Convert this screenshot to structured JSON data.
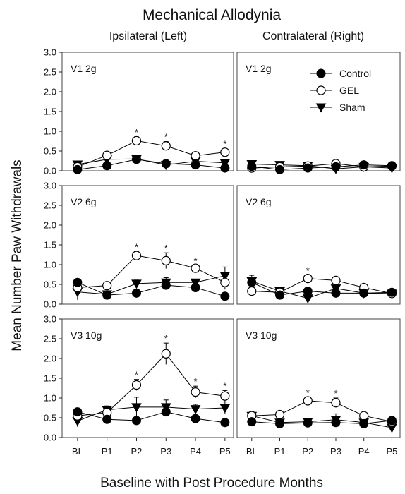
{
  "figure": {
    "title": "Mechanical Allodynia",
    "ylabel": "Mean Number Paw Withdrawals",
    "xlabel": "Baseline with Post Procedure Months",
    "col_titles": [
      "Ipsilateral (Left)",
      "Contralateral (Right)"
    ]
  },
  "legend": {
    "items": [
      {
        "label": "Control",
        "marker": "filled-circle"
      },
      {
        "label": "GEL",
        "marker": "open-circle"
      },
      {
        "label": "Sham",
        "marker": "filled-triangle-down"
      }
    ]
  },
  "chart_data": [
    {
      "type": "line",
      "title": "V1 2g",
      "side": "Ipsilateral (Left)",
      "categories": [
        "BL",
        "P1",
        "P2",
        "P3",
        "P4",
        "P5"
      ],
      "ylim": [
        0,
        3
      ],
      "yticks": [
        "0.0",
        "0.5",
        "1.0",
        "1.5",
        "2.0",
        "2.5",
        "3.0"
      ],
      "series": [
        {
          "name": "Control",
          "values": [
            0.03,
            0.13,
            0.29,
            0.18,
            0.15,
            0.07
          ],
          "errors": [
            0.05,
            0.05,
            0.05,
            0.05,
            0.05,
            0.05
          ]
        },
        {
          "name": "GEL",
          "values": [
            0.1,
            0.39,
            0.76,
            0.63,
            0.38,
            0.47
          ],
          "errors": [
            0.06,
            0.07,
            0.1,
            0.11,
            0.06,
            0.09
          ]
        },
        {
          "name": "Sham",
          "values": [
            0.16,
            0.29,
            0.3,
            0.15,
            0.24,
            0.2
          ],
          "errors": [
            0.05,
            0.06,
            0.05,
            0.05,
            0.05,
            0.05
          ]
        }
      ],
      "significance": [
        false,
        false,
        true,
        true,
        false,
        true
      ]
    },
    {
      "type": "line",
      "title": "V1 2g",
      "side": "Contralateral (Right)",
      "categories": [
        "BL",
        "P1",
        "P2",
        "P3",
        "P4",
        "P5"
      ],
      "ylim": [
        0,
        3
      ],
      "yticks": [
        "0.0",
        "0.5",
        "1.0",
        "1.5",
        "2.0",
        "2.5",
        "3.0"
      ],
      "series": [
        {
          "name": "Control",
          "values": [
            0.11,
            0.03,
            0.07,
            0.1,
            0.15,
            0.13
          ],
          "errors": [
            0.04,
            0.03,
            0.04,
            0.04,
            0.04,
            0.04
          ]
        },
        {
          "name": "GEL",
          "values": [
            0.07,
            0.1,
            0.12,
            0.18,
            0.1,
            0.12
          ],
          "errors": [
            0.04,
            0.04,
            0.04,
            0.05,
            0.04,
            0.04
          ]
        },
        {
          "name": "Sham",
          "values": [
            0.17,
            0.15,
            0.13,
            0.05,
            0.1,
            0.07
          ],
          "errors": [
            0.04,
            0.04,
            0.04,
            0.03,
            0.04,
            0.03
          ]
        }
      ],
      "significance": [
        false,
        false,
        false,
        false,
        false,
        false
      ]
    },
    {
      "type": "line",
      "title": "V2 6g",
      "side": "Ipsilateral (Left)",
      "categories": [
        "BL",
        "P1",
        "P2",
        "P3",
        "P4",
        "P5"
      ],
      "ylim": [
        0,
        3
      ],
      "yticks": [
        "0.0",
        "0.5",
        "1.0",
        "1.5",
        "2.0",
        "2.5",
        "3.0"
      ],
      "series": [
        {
          "name": "Control",
          "values": [
            0.55,
            0.23,
            0.28,
            0.48,
            0.42,
            0.2
          ],
          "errors": [
            0.06,
            0.06,
            0.07,
            0.09,
            0.08,
            0.05
          ]
        },
        {
          "name": "GEL",
          "values": [
            0.42,
            0.47,
            1.23,
            1.1,
            0.91,
            0.55
          ],
          "errors": [
            0.08,
            0.07,
            0.1,
            0.2,
            0.06,
            0.18
          ]
        },
        {
          "name": "Sham",
          "values": [
            0.31,
            0.25,
            0.52,
            0.55,
            0.55,
            0.72
          ],
          "errors": [
            0.2,
            0.06,
            0.09,
            0.12,
            0.08,
            0.22
          ]
        }
      ],
      "significance": [
        false,
        false,
        true,
        true,
        true,
        false
      ]
    },
    {
      "type": "line",
      "title": "V2 6g",
      "side": "Contralateral (Right)",
      "categories": [
        "BL",
        "P1",
        "P2",
        "P3",
        "P4",
        "P5"
      ],
      "ylim": [
        0,
        3
      ],
      "yticks": [
        "0.0",
        "0.5",
        "1.0",
        "1.5",
        "2.0",
        "2.5",
        "3.0"
      ],
      "series": [
        {
          "name": "Control",
          "values": [
            0.55,
            0.23,
            0.33,
            0.28,
            0.28,
            0.3
          ],
          "errors": [
            0.06,
            0.06,
            0.06,
            0.06,
            0.06,
            0.05
          ]
        },
        {
          "name": "GEL",
          "values": [
            0.33,
            0.3,
            0.65,
            0.6,
            0.42,
            0.27
          ],
          "errors": [
            0.06,
            0.06,
            0.08,
            0.07,
            0.06,
            0.05
          ]
        },
        {
          "name": "Sham",
          "values": [
            0.58,
            0.33,
            0.15,
            0.4,
            0.28,
            0.27
          ],
          "errors": [
            0.15,
            0.06,
            0.05,
            0.08,
            0.08,
            0.05
          ]
        }
      ],
      "significance": [
        false,
        false,
        true,
        false,
        false,
        false
      ]
    },
    {
      "type": "line",
      "title": "V3 10g",
      "side": "Ipsilateral (Left)",
      "categories": [
        "BL",
        "P1",
        "P2",
        "P3",
        "P4",
        "P5"
      ],
      "ylim": [
        0,
        3
      ],
      "yticks": [
        "0.0",
        "0.5",
        "1.0",
        "1.5",
        "2.0",
        "2.5",
        "3.0"
      ],
      "series": [
        {
          "name": "Control",
          "values": [
            0.65,
            0.46,
            0.43,
            0.65,
            0.48,
            0.38
          ],
          "errors": [
            0.07,
            0.07,
            0.08,
            0.07,
            0.06,
            0.06
          ]
        },
        {
          "name": "GEL",
          "values": [
            0.55,
            0.63,
            1.33,
            2.12,
            1.15,
            1.05
          ],
          "errors": [
            0.1,
            0.08,
            0.14,
            0.27,
            0.15,
            0.14
          ]
        },
        {
          "name": "Sham",
          "values": [
            0.42,
            0.7,
            0.77,
            0.77,
            0.72,
            0.75
          ],
          "errors": [
            0.15,
            0.1,
            0.25,
            0.18,
            0.12,
            0.15
          ]
        }
      ],
      "significance": [
        false,
        false,
        true,
        true,
        true,
        true
      ]
    },
    {
      "type": "line",
      "title": "V3 10g",
      "side": "Contralateral (Right)",
      "categories": [
        "BL",
        "P1",
        "P2",
        "P3",
        "P4",
        "P5"
      ],
      "ylim": [
        0,
        3
      ],
      "yticks": [
        "0.0",
        "0.5",
        "1.0",
        "1.5",
        "2.0",
        "2.5",
        "3.0"
      ],
      "series": [
        {
          "name": "Control",
          "values": [
            0.4,
            0.35,
            0.37,
            0.38,
            0.35,
            0.43
          ],
          "errors": [
            0.05,
            0.05,
            0.05,
            0.05,
            0.05,
            0.06
          ]
        },
        {
          "name": "GEL",
          "values": [
            0.55,
            0.58,
            0.93,
            0.88,
            0.55,
            0.4
          ],
          "errors": [
            0.06,
            0.06,
            0.09,
            0.12,
            0.06,
            0.06
          ]
        },
        {
          "name": "Sham",
          "values": [
            0.55,
            0.38,
            0.4,
            0.45,
            0.38,
            0.25
          ],
          "errors": [
            0.1,
            0.06,
            0.08,
            0.15,
            0.1,
            0.06
          ]
        }
      ],
      "significance": [
        false,
        false,
        true,
        true,
        false,
        false
      ]
    }
  ]
}
